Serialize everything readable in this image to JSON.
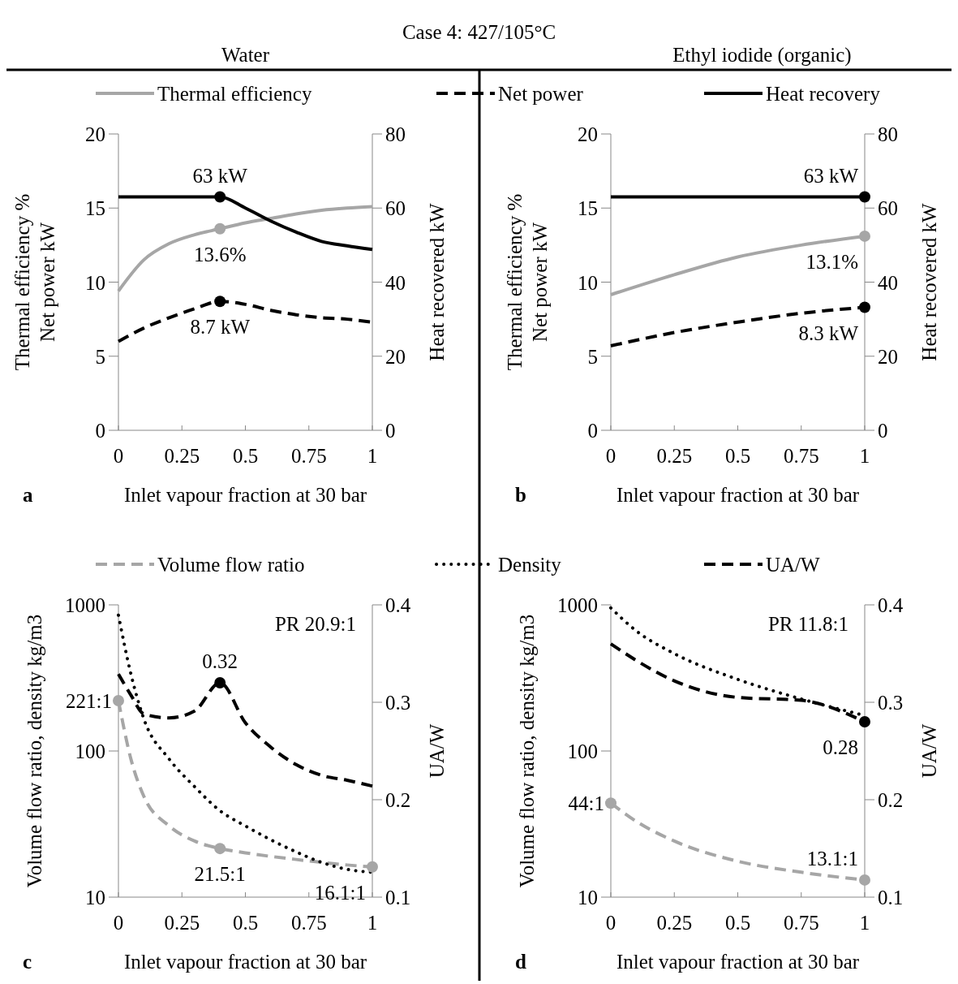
{
  "chart_data": [
    {
      "type": "line",
      "subtitle": "Case 4: 427/105°C",
      "title": "Water",
      "xlabel": "Inlet vapour fraction at 30 bar",
      "ylabel": "Thermal efficiency %\nNet power kW",
      "y2label": "Heat recovered kW",
      "x": [
        0,
        0.1,
        0.2,
        0.3,
        0.4,
        0.5,
        0.6,
        0.7,
        0.8,
        0.9,
        1
      ],
      "xlim": [
        0,
        1
      ],
      "xticks": [
        0,
        0.25,
        0.5,
        0.75,
        1
      ],
      "ylim": [
        0,
        20
      ],
      "yticks": [
        0,
        5,
        10,
        15,
        20
      ],
      "y2lim": [
        0,
        80
      ],
      "y2ticks": [
        0,
        20,
        40,
        60,
        80
      ],
      "legend": "top",
      "annotations": [
        "a"
      ],
      "series": [
        {
          "name": "Thermal efficiency",
          "color": "#a6a6a6",
          "line_style": "solid",
          "values": [
            9.4,
            11.5,
            12.6,
            13.2,
            13.6,
            14.0,
            14.3,
            14.6,
            14.85,
            15.0,
            15.1
          ],
          "value_labels": [
            null,
            null,
            null,
            null,
            "13.6%",
            null,
            null,
            null,
            null,
            null,
            null
          ]
        },
        {
          "name": "Net power",
          "color": "#000000",
          "line_style": "dashed",
          "values": [
            6.0,
            6.9,
            7.6,
            8.2,
            8.7,
            8.5,
            8.1,
            7.8,
            7.6,
            7.5,
            7.3
          ],
          "value_labels": [
            null,
            null,
            null,
            null,
            "8.7 kW",
            null,
            null,
            null,
            null,
            null,
            null
          ]
        },
        {
          "name": "Heat recovery",
          "color": "#000000",
          "line_style": "solid",
          "axis": "y2",
          "values": [
            63,
            63,
            63,
            63,
            63,
            60,
            56.5,
            53.5,
            51,
            49.8,
            48.8
          ],
          "value_labels": [
            null,
            null,
            null,
            null,
            "63 kW",
            null,
            null,
            null,
            null,
            null,
            null
          ]
        }
      ]
    },
    {
      "type": "line",
      "title": "Ethyl iodide (organic)",
      "xlabel": "Inlet vapour fraction at 30 bar",
      "ylabel": "Thermal efficiency %\nNet power kW",
      "y2label": "Heat recovered kW",
      "x": [
        0,
        0.25,
        0.5,
        0.75,
        1
      ],
      "xlim": [
        0,
        1
      ],
      "xticks": [
        0,
        0.25,
        0.5,
        0.75,
        1
      ],
      "ylim": [
        0,
        20
      ],
      "yticks": [
        0,
        5,
        10,
        15,
        20
      ],
      "y2lim": [
        0,
        80
      ],
      "y2ticks": [
        0,
        20,
        40,
        60,
        80
      ],
      "annotations": [
        "b"
      ],
      "series": [
        {
          "color": "#a6a6a6",
          "line_style": "solid",
          "values": [
            9.15,
            10.5,
            11.7,
            12.5,
            13.1
          ],
          "value_labels": [
            null,
            null,
            null,
            null,
            "13.1%"
          ]
        },
        {
          "color": "#000000",
          "line_style": "dashed",
          "values": [
            5.7,
            6.6,
            7.3,
            7.9,
            8.3
          ],
          "value_labels": [
            null,
            null,
            null,
            null,
            "8.3 kW"
          ]
        },
        {
          "color": "#000000",
          "line_style": "solid",
          "axis": "y2",
          "values": [
            63,
            63,
            63,
            63,
            63
          ],
          "value_labels": [
            null,
            null,
            null,
            null,
            "63 kW"
          ]
        }
      ]
    },
    {
      "type": "line",
      "xlabel": "Inlet vapour fraction at 30 bar",
      "ylabel": "Volume flow ratio, density kg/m3",
      "y2label": "UA/W",
      "x": [
        0,
        0.05,
        0.1,
        0.2,
        0.3,
        0.4,
        0.5,
        0.6,
        0.7,
        0.8,
        0.9,
        1
      ],
      "xlim": [
        0,
        1
      ],
      "xticks": [
        0,
        0.25,
        0.5,
        0.75,
        1
      ],
      "ylim": [
        10,
        1000
      ],
      "yticks": [
        10,
        100,
        1000
      ],
      "y2lim": [
        0.1,
        0.4
      ],
      "y2ticks": [
        0.1,
        0.2,
        0.3,
        0.4
      ],
      "log": "y",
      "legend": "top",
      "annotations": [
        "c",
        "PR 20.9:1"
      ],
      "series": [
        {
          "name": "Volume flow ratio",
          "color": "#a6a6a6",
          "line_style": "dashed",
          "values": [
            221,
            87,
            49,
            30.7,
            24.2,
            21.5,
            20.1,
            19,
            18.1,
            17.3,
            16.6,
            16.1
          ],
          "value_labels": [
            "221:1",
            null,
            null,
            null,
            null,
            "21.5:1",
            null,
            null,
            null,
            null,
            null,
            "16.1:1"
          ]
        },
        {
          "name": "Density",
          "color": "#000000",
          "line_style": "dotted",
          "values": [
            850,
            332,
            166,
            88,
            57,
            39,
            30.7,
            24.7,
            20.4,
            17.3,
            15.5,
            14.8
          ]
        },
        {
          "name": "UA/W",
          "color": "#000000",
          "line_style": "dashed",
          "axis": "y2",
          "values": [
            0.329,
            0.307,
            0.288,
            0.284,
            0.291,
            0.32,
            0.279,
            0.254,
            0.236,
            0.225,
            0.22,
            0.214
          ],
          "value_labels": [
            null,
            null,
            null,
            null,
            null,
            "0.32",
            null,
            null,
            null,
            null,
            null,
            null
          ]
        }
      ]
    },
    {
      "type": "line",
      "xlabel": "Inlet vapour fraction at 30 bar",
      "ylabel": "Volume flow ratio, density kg/m3",
      "y2label": "UA/W",
      "x": [
        0,
        0.1,
        0.25,
        0.5,
        0.75,
        1
      ],
      "xlim": [
        0,
        1
      ],
      "xticks": [
        0,
        0.25,
        0.5,
        0.75,
        1
      ],
      "ylim": [
        10,
        1000
      ],
      "yticks": [
        10,
        100,
        1000
      ],
      "y2lim": [
        0.1,
        0.4
      ],
      "y2ticks": [
        0.1,
        0.2,
        0.3,
        0.4
      ],
      "log": "y",
      "annotations": [
        "d",
        "PR 11.8:1"
      ],
      "series": [
        {
          "color": "#a6a6a6",
          "line_style": "dashed",
          "values": [
            44,
            33,
            24.2,
            17.6,
            14.8,
            13.1
          ],
          "value_labels": [
            "44:1",
            null,
            null,
            null,
            null,
            "13.1:1"
          ]
        },
        {
          "color": "#000000",
          "line_style": "dotted",
          "values": [
            953,
            664,
            464,
            309,
            227,
            175
          ]
        },
        {
          "color": "#000000",
          "line_style": "dashed",
          "axis": "y2",
          "values": [
            0.36,
            0.343,
            0.322,
            0.305,
            0.302,
            0.28
          ],
          "value_labels": [
            null,
            null,
            null,
            null,
            null,
            "0.28"
          ]
        }
      ]
    }
  ]
}
